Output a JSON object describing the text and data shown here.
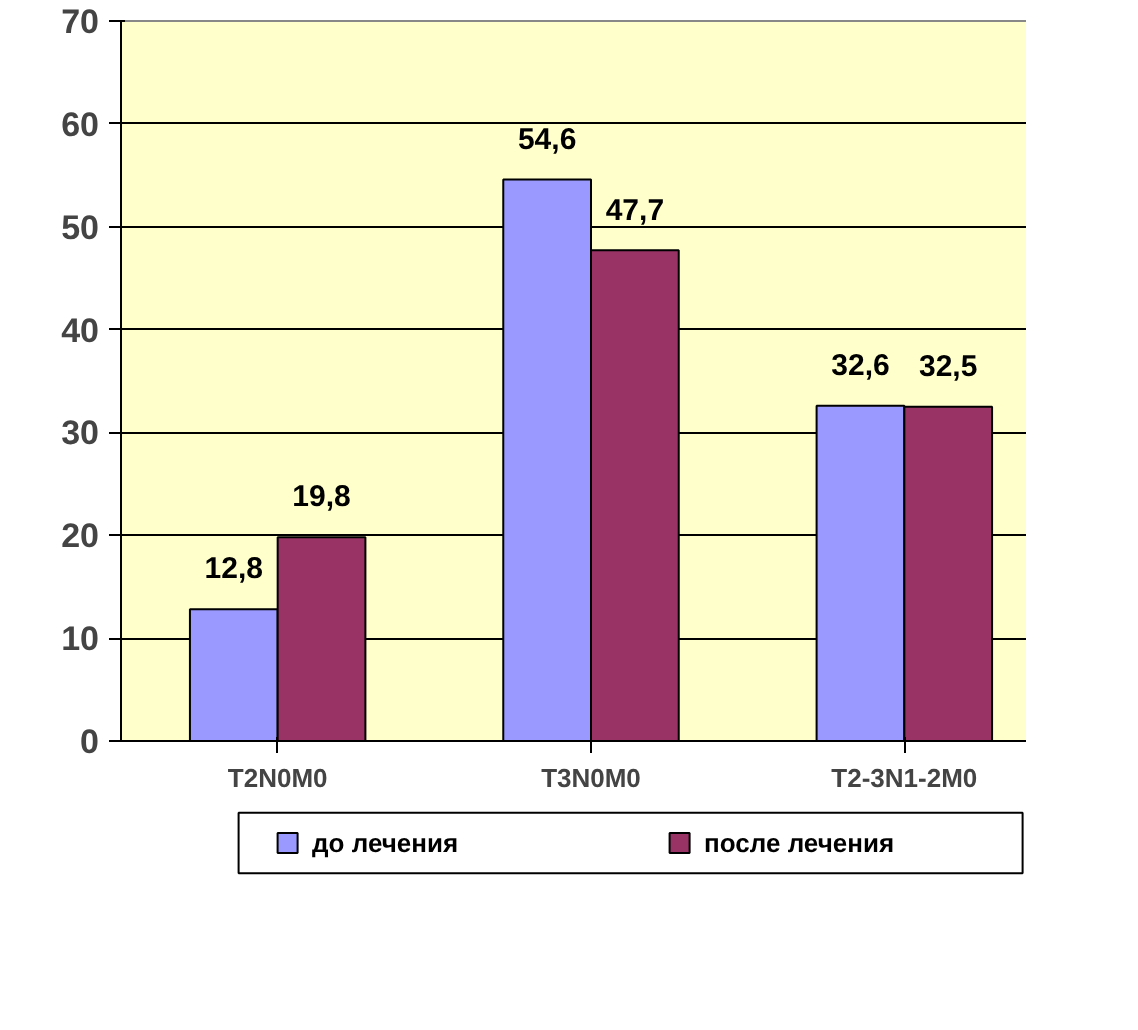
{
  "chart_data": {
    "type": "bar",
    "categories": [
      "T2N0M0",
      "T3N0M0",
      "T2-3N1-2M0"
    ],
    "series": [
      {
        "name": "до лечения",
        "color": "#9999ff",
        "values": [
          12.8,
          54.6,
          32.6
        ],
        "value_labels": [
          "12,8",
          "54,6",
          "32,6"
        ]
      },
      {
        "name": "после лечения",
        "color": "#993366",
        "values": [
          19.8,
          47.7,
          32.5
        ],
        "value_labels": [
          "19,8",
          "47,7",
          "32,5"
        ]
      }
    ],
    "ylim": [
      0,
      70
    ],
    "yticks": [
      0,
      10,
      20,
      30,
      40,
      50,
      60,
      70
    ],
    "grid": "y",
    "legend": "bottom"
  }
}
